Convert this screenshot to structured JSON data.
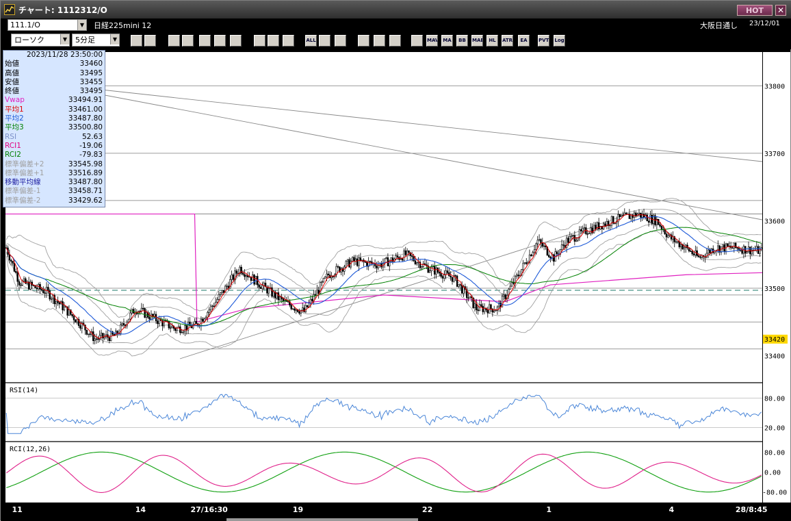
{
  "title": "チャート: 1112312/O",
  "hot_label": "HOT",
  "close_label": "✕",
  "symbol_code": "111.1/O",
  "instrument": "日経225mini 12",
  "market": "大阪日通し",
  "date": "23/12/01",
  "chart_type": "ローソク",
  "interval": "5分足",
  "toolbar_icons": [
    "zoom-icon",
    "cursor-icon",
    "crosshair-icon",
    "search-icon",
    "candle-icon",
    "compare-icon",
    "grid-icon",
    "print-icon",
    "add-icon",
    "delete-icon",
    "all-icon",
    "trendline-icon",
    "arrow-icon",
    "undo-icon",
    "settings-icon",
    "paint-icon",
    "color-icon",
    "mavg-icon",
    "ma-icon",
    "bb-icon",
    "mae-icon",
    "hl-icon",
    "atr-icon",
    "ea-icon",
    "pvt-icon",
    "log-icon",
    "export-icon"
  ],
  "toolbar_labels": [
    "",
    "",
    "",
    "",
    "",
    "",
    "",
    "",
    "",
    "",
    "ALL",
    "",
    "",
    "",
    "",
    "",
    "",
    "MAVG",
    "MA",
    "BB",
    "MAE",
    "HL",
    "ATR",
    "EA",
    "PVT",
    "Log",
    ""
  ],
  "info": {
    "datetime": "2023/11/28  23:50:00",
    "rows": [
      {
        "label": "始値",
        "value": "33460",
        "color": "#000000"
      },
      {
        "label": "高値",
        "value": "33495",
        "color": "#000000"
      },
      {
        "label": "安値",
        "value": "33455",
        "color": "#000000"
      },
      {
        "label": "終値",
        "value": "33495",
        "color": "#000000"
      },
      {
        "label": "Vwap",
        "value": "33494.91",
        "color": "#e020c0"
      },
      {
        "label": "平均1",
        "value": "33461.00",
        "color": "#e00000"
      },
      {
        "label": "平均2",
        "value": "33487.80",
        "color": "#1e5ad8"
      },
      {
        "label": "平均3",
        "value": "33500.80",
        "color": "#008000"
      },
      {
        "label": "RSI",
        "value": "52.63",
        "color": "#7c90c8"
      },
      {
        "label": "RCI1",
        "value": "-19.06",
        "color": "#e00080"
      },
      {
        "label": "RCI2",
        "value": "-79.83",
        "color": "#008000"
      },
      {
        "label": "標準偏差+2",
        "value": "33545.98",
        "color": "#a0a0a0"
      },
      {
        "label": "標準偏差+1",
        "value": "33516.89",
        "color": "#a0a0a0"
      },
      {
        "label": "移動平均線",
        "value": "33487.80",
        "color": "#1e1ea0"
      },
      {
        "label": "標準偏差-1",
        "value": "33458.71",
        "color": "#a0a0a0"
      },
      {
        "label": "標準偏差-2",
        "value": "33429.62",
        "color": "#a0a0a0"
      }
    ]
  },
  "price_axis": {
    "ticks": [
      "33800",
      "33700",
      "33600",
      "33500",
      "33400"
    ],
    "current": "33420"
  },
  "rsi_panel": {
    "label": "RSI(14)",
    "ticks": [
      "80.00",
      "20.00"
    ]
  },
  "rci_panel": {
    "label": "RCI(12,26)",
    "ticks": [
      "80.00",
      "0.00",
      "-80.00"
    ]
  },
  "x_axis": [
    {
      "label": "11",
      "pos": 0.014
    },
    {
      "label": "14",
      "pos": 0.177
    },
    {
      "label": "27/16:30",
      "pos": 0.25
    },
    {
      "label": "19",
      "pos": 0.385
    },
    {
      "label": "22",
      "pos": 0.556
    },
    {
      "label": "1",
      "pos": 0.72
    },
    {
      "label": "4",
      "pos": 0.882
    },
    {
      "label": "28/8:45",
      "pos": 0.97
    }
  ],
  "chart_data": {
    "type": "candlestick",
    "price_ylim": [
      33360,
      33850
    ],
    "hlines": [
      33800,
      33700,
      33630,
      33610,
      33500,
      33490,
      33450,
      33410
    ],
    "dashed_level": 33500,
    "rsi_ylim": [
      0,
      100
    ],
    "rci_ylim": [
      -100,
      100
    ],
    "colors": {
      "ma1": "#e00000",
      "ma2": "#1e5ad8",
      "ma3": "#008000",
      "vwap": "#e020c0",
      "bb": "#a0a0a0",
      "rsi": "#4a86d8",
      "rci1": "#e0208a",
      "rci2": "#10a010",
      "up": "#ffffff",
      "down": "#000000"
    }
  }
}
